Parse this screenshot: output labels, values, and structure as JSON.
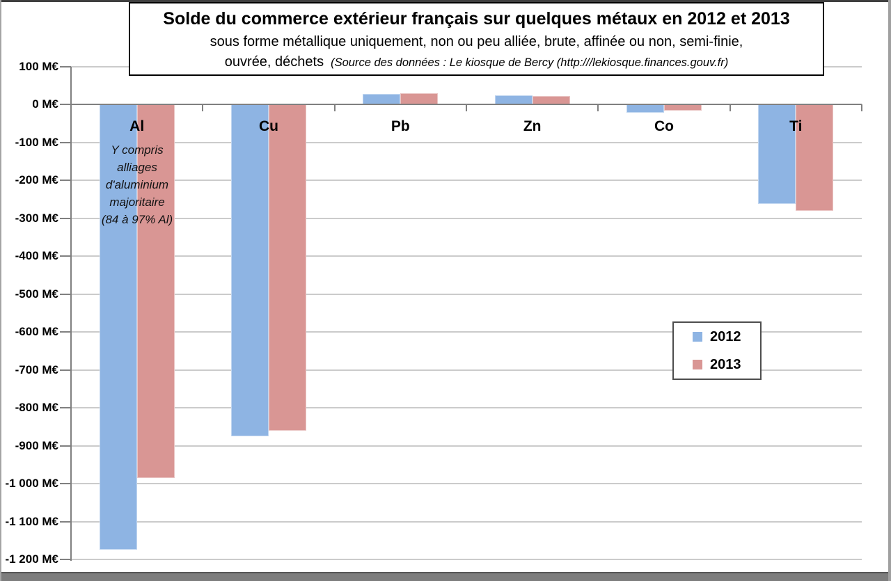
{
  "title_box": {
    "title": "Solde du commerce extérieur français sur quelques métaux en 2012 et 2013",
    "subtitle_line1": "sous forme métallique uniquement, non ou peu alliée, brute, affinée ou non, semi-finie,",
    "subtitle_line2": "ouvrée, déchets",
    "source": "(Source des données : Le kiosque de Bercy (http:///lekiosque.finances.gouv.fr)"
  },
  "legend": {
    "items": [
      {
        "label": "2012",
        "color": "#8EB4E3"
      },
      {
        "label": "2013",
        "color": "#D99694"
      }
    ]
  },
  "annotation": {
    "attached_to": "Al",
    "lines": [
      "Y compris",
      "alliages",
      "d'aluminium",
      "majoritaire",
      "(84 à 97% Al)"
    ]
  },
  "colors": {
    "series_2012": "#8EB4E3",
    "series_2013": "#D99694",
    "gridline": "#CBCBCB",
    "axis": "#808080",
    "text": "#000000"
  },
  "chart_data": {
    "type": "bar",
    "categories": [
      "Al",
      "Cu",
      "Pb",
      "Zn",
      "Co",
      "Ti"
    ],
    "series": [
      {
        "name": "2012",
        "color": "#8EB4E3",
        "values": [
          -1175,
          -875,
          28,
          24,
          -21,
          -262
        ]
      },
      {
        "name": "2013",
        "color": "#D99694",
        "values": [
          -985,
          -860,
          31,
          22,
          -15,
          -281
        ]
      }
    ],
    "unit": "M€",
    "ylim": [
      -1200,
      100
    ],
    "ytick_step": 100,
    "ytick_labels": [
      "100 M€",
      "0 M€",
      "-100 M€",
      "-200 M€",
      "-300 M€",
      "-400 M€",
      "-500 M€",
      "-600 M€",
      "-700 M€",
      "-800 M€",
      "-900 M€",
      "-1 000 M€",
      "-1 100 M€",
      "-1 200 M€"
    ],
    "grid": true,
    "legend_position": "middle-right",
    "title": "Solde du commerce extérieur français sur quelques métaux en 2012 et 2013"
  }
}
